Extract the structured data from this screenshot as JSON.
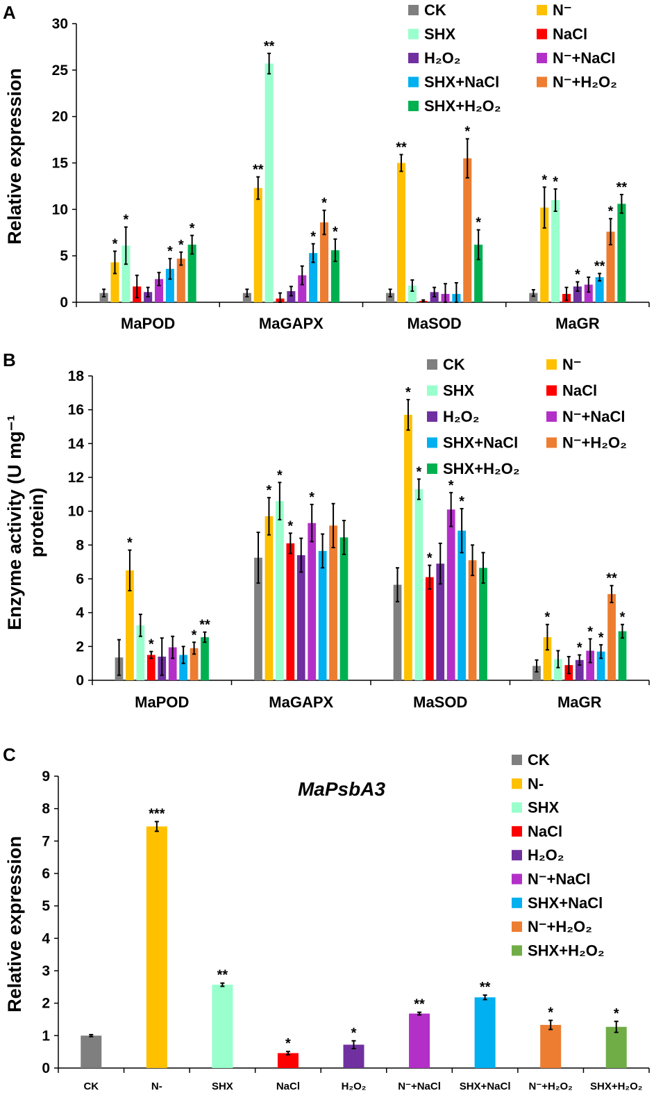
{
  "colors": {
    "CK": "#7f7f7f",
    "N": "#ffc000",
    "SHX": "#99ffcc",
    "NaCl": "#ff0000",
    "H2O2": "#7030a0",
    "NNaCl": "#b330c8",
    "SHXNaCl": "#00b0f0",
    "NH2O2": "#ed7d31",
    "SHXH2O2": "#00b050",
    "SHXH2O2_C": "#70ad47"
  },
  "chart_data": [
    {
      "panel": "A",
      "type": "bar",
      "title": "",
      "ylabel": "Relative expression",
      "xlabel": "",
      "ylim": [
        0,
        30
      ],
      "yticks": [
        "0",
        "5",
        "10",
        "15",
        "20",
        "25",
        "30"
      ],
      "categories": [
        "MaPOD",
        "MaGAPX",
        "MaSOD",
        "MaGR"
      ],
      "legend": [
        "CK",
        "N⁻",
        "SHX",
        "NaCl",
        "H₂O₂",
        "N⁻+NaCl",
        "SHX+NaCl",
        "N⁻+H₂O₂",
        "SHX+H₂O₂"
      ],
      "series": [
        {
          "name": "CK",
          "color_key": "CK",
          "values": [
            1.0,
            1.0,
            1.0,
            1.0
          ],
          "errors": [
            0.4,
            0.4,
            0.4,
            0.35
          ],
          "marks": [
            "",
            "",
            "",
            ""
          ]
        },
        {
          "name": "N⁻",
          "color_key": "N",
          "values": [
            4.3,
            12.3,
            15.0,
            10.2
          ],
          "errors": [
            1.2,
            1.2,
            0.9,
            2.2
          ],
          "marks": [
            "*",
            "**",
            "**",
            "*"
          ]
        },
        {
          "name": "SHX",
          "color_key": "SHX",
          "values": [
            6.1,
            25.7,
            1.8,
            11.0
          ],
          "errors": [
            2.0,
            1.1,
            0.6,
            1.2
          ],
          "marks": [
            "*",
            "**",
            "",
            "*"
          ]
        },
        {
          "name": "NaCl",
          "color_key": "NaCl",
          "values": [
            1.7,
            0.4,
            0.15,
            0.9
          ],
          "errors": [
            1.2,
            0.6,
            0.1,
            0.7
          ],
          "marks": [
            "",
            "",
            "",
            ""
          ]
        },
        {
          "name": "H₂O₂",
          "color_key": "H2O2",
          "values": [
            1.1,
            1.2,
            1.1,
            1.7
          ],
          "errors": [
            0.5,
            0.5,
            0.5,
            0.5
          ],
          "marks": [
            "",
            "",
            "",
            "*"
          ]
        },
        {
          "name": "N⁻+NaCl",
          "color_key": "NNaCl",
          "values": [
            2.5,
            2.9,
            0.9,
            1.9
          ],
          "errors": [
            0.7,
            1.0,
            1.1,
            0.8
          ],
          "marks": [
            "",
            "",
            "",
            ""
          ]
        },
        {
          "name": "SHX+NaCl",
          "color_key": "SHXNaCl",
          "values": [
            3.6,
            5.3,
            0.9,
            2.7
          ],
          "errors": [
            1.1,
            1.0,
            1.2,
            0.4
          ],
          "marks": [
            "*",
            "*",
            "",
            "**"
          ]
        },
        {
          "name": "N⁻+H₂O₂",
          "color_key": "NH2O2",
          "values": [
            4.7,
            8.6,
            15.5,
            7.6
          ],
          "errors": [
            0.7,
            1.3,
            2.1,
            1.4
          ],
          "marks": [
            "*",
            "*",
            "*",
            "*"
          ]
        },
        {
          "name": "SHX+H₂O₂",
          "color_key": "SHXH2O2",
          "values": [
            6.2,
            5.6,
            6.2,
            10.6
          ],
          "errors": [
            1.0,
            1.2,
            1.6,
            1.0
          ],
          "marks": [
            "*",
            "*",
            "*",
            "**"
          ]
        }
      ]
    },
    {
      "panel": "B",
      "type": "bar",
      "title": "",
      "ylabel_lines": [
        "Enzyme activity (U mg⁻¹",
        "protein)"
      ],
      "xlabel": "",
      "ylim": [
        0,
        18
      ],
      "yticks": [
        "0",
        "2",
        "4",
        "6",
        "8",
        "10",
        "12",
        "14",
        "16",
        "18"
      ],
      "categories": [
        "MaPOD",
        "MaGAPX",
        "MaSOD",
        "MaGR"
      ],
      "legend": [
        "CK",
        "N⁻",
        "SHX",
        "NaCl",
        "H₂O₂",
        "N⁻+NaCl",
        "SHX+NaCl",
        "N⁻+H₂O₂",
        "SHX+H₂O₂"
      ],
      "series": [
        {
          "name": "CK",
          "color_key": "CK",
          "values": [
            1.35,
            7.25,
            5.65,
            0.85
          ],
          "errors": [
            1.05,
            1.5,
            1.0,
            0.35
          ],
          "marks": [
            "",
            "",
            "",
            ""
          ]
        },
        {
          "name": "N⁻",
          "color_key": "N",
          "values": [
            6.5,
            9.7,
            15.7,
            2.55
          ],
          "errors": [
            1.2,
            1.1,
            0.9,
            0.75
          ],
          "marks": [
            "*",
            "*",
            "*",
            "*"
          ]
        },
        {
          "name": "SHX",
          "color_key": "SHX",
          "values": [
            3.25,
            10.6,
            11.3,
            1.25
          ],
          "errors": [
            0.65,
            1.1,
            0.6,
            0.5
          ],
          "marks": [
            "",
            "*",
            "*",
            ""
          ]
        },
        {
          "name": "NaCl",
          "color_key": "NaCl",
          "values": [
            1.5,
            8.1,
            6.1,
            0.9
          ],
          "errors": [
            0.2,
            0.6,
            0.7,
            0.5
          ],
          "marks": [
            "*",
            "*",
            "*",
            ""
          ]
        },
        {
          "name": "H₂O₂",
          "color_key": "H2O2",
          "values": [
            1.4,
            7.4,
            6.9,
            1.2
          ],
          "errors": [
            1.1,
            1.0,
            1.2,
            0.3
          ],
          "marks": [
            "",
            "",
            "",
            "*"
          ]
        },
        {
          "name": "N⁻+NaCl",
          "color_key": "NNaCl",
          "values": [
            1.95,
            9.3,
            10.1,
            1.75
          ],
          "errors": [
            0.65,
            1.1,
            1.0,
            0.7
          ],
          "marks": [
            "",
            "*",
            "*",
            "*"
          ]
        },
        {
          "name": "SHX+NaCl",
          "color_key": "SHXNaCl",
          "values": [
            1.5,
            7.65,
            8.85,
            1.7
          ],
          "errors": [
            0.5,
            1.0,
            1.3,
            0.4
          ],
          "marks": [
            "",
            "",
            "*",
            "*"
          ]
        },
        {
          "name": "N⁻+H₂O₂",
          "color_key": "NH2O2",
          "values": [
            1.9,
            9.15,
            7.1,
            5.1
          ],
          "errors": [
            0.35,
            1.3,
            0.9,
            0.5
          ],
          "marks": [
            "*",
            "",
            "",
            "**"
          ]
        },
        {
          "name": "SHX+H₂O₂",
          "color_key": "SHXH2O2",
          "values": [
            2.55,
            8.45,
            6.65,
            2.9
          ],
          "errors": [
            0.3,
            1.0,
            0.9,
            0.4
          ],
          "marks": [
            "**",
            "",
            "",
            "*"
          ]
        }
      ]
    },
    {
      "panel": "C",
      "type": "bar",
      "title": "MaPsbA3",
      "ylabel": "Relative expression",
      "xlabel": "",
      "ylim": [
        0,
        9
      ],
      "yticks": [
        "0",
        "1",
        "2",
        "3",
        "4",
        "5",
        "6",
        "7",
        "8",
        "9"
      ],
      "categories": [
        "CK",
        "N-",
        "SHX",
        "NaCl",
        "H₂O₂",
        "N⁻+NaCl",
        "SHX+NaCl",
        "N⁻+H₂O₂",
        "SHX+H₂O₂"
      ],
      "legend": [
        "CK",
        "N-",
        "SHX",
        "NaCl",
        "H₂O₂",
        "N⁻+NaCl",
        "SHX+NaCl",
        "N⁻+H₂O₂",
        "SHX+H₂O₂"
      ],
      "values": [
        1.0,
        7.45,
        2.57,
        0.46,
        0.72,
        1.68,
        2.18,
        1.33,
        1.27
      ],
      "errors": [
        0.03,
        0.15,
        0.05,
        0.05,
        0.12,
        0.04,
        0.07,
        0.14,
        0.17
      ],
      "marks": [
        "",
        "***",
        "**",
        "*",
        "*",
        "**",
        "**",
        "*",
        "*"
      ],
      "color_keys": [
        "CK",
        "N",
        "SHX",
        "NaCl",
        "H2O2",
        "NNaCl",
        "SHXNaCl",
        "NH2O2",
        "SHXH2O2_C"
      ]
    }
  ]
}
